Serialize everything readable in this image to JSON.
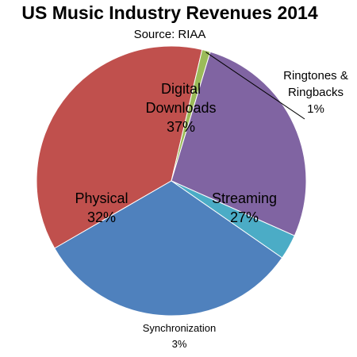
{
  "chart_data": {
    "type": "pie",
    "title": "US Music Industry Revenues 2014",
    "subtitle": "Source: RIAA",
    "slices": [
      {
        "name": "Digital Downloads",
        "value": 37,
        "label": [
          "Digital",
          "Downloads",
          "37%"
        ],
        "color": "#c0504d"
      },
      {
        "name": "Ringtones & Ringbacks",
        "value": 1,
        "label": [
          "Ringtones &",
          "Ringbacks",
          "1%"
        ],
        "color": "#9bbb59"
      },
      {
        "name": "Streaming",
        "value": 27,
        "label": [
          "Streaming",
          "27%"
        ],
        "color": "#8064a2"
      },
      {
        "name": "Synchronization",
        "value": 3,
        "label": [
          "Synchronization",
          "3%"
        ],
        "color": "#4bacc6"
      },
      {
        "name": "Physical",
        "value": 32,
        "label": [
          "Physical",
          "32%"
        ],
        "color": "#4f81bd"
      }
    ]
  }
}
